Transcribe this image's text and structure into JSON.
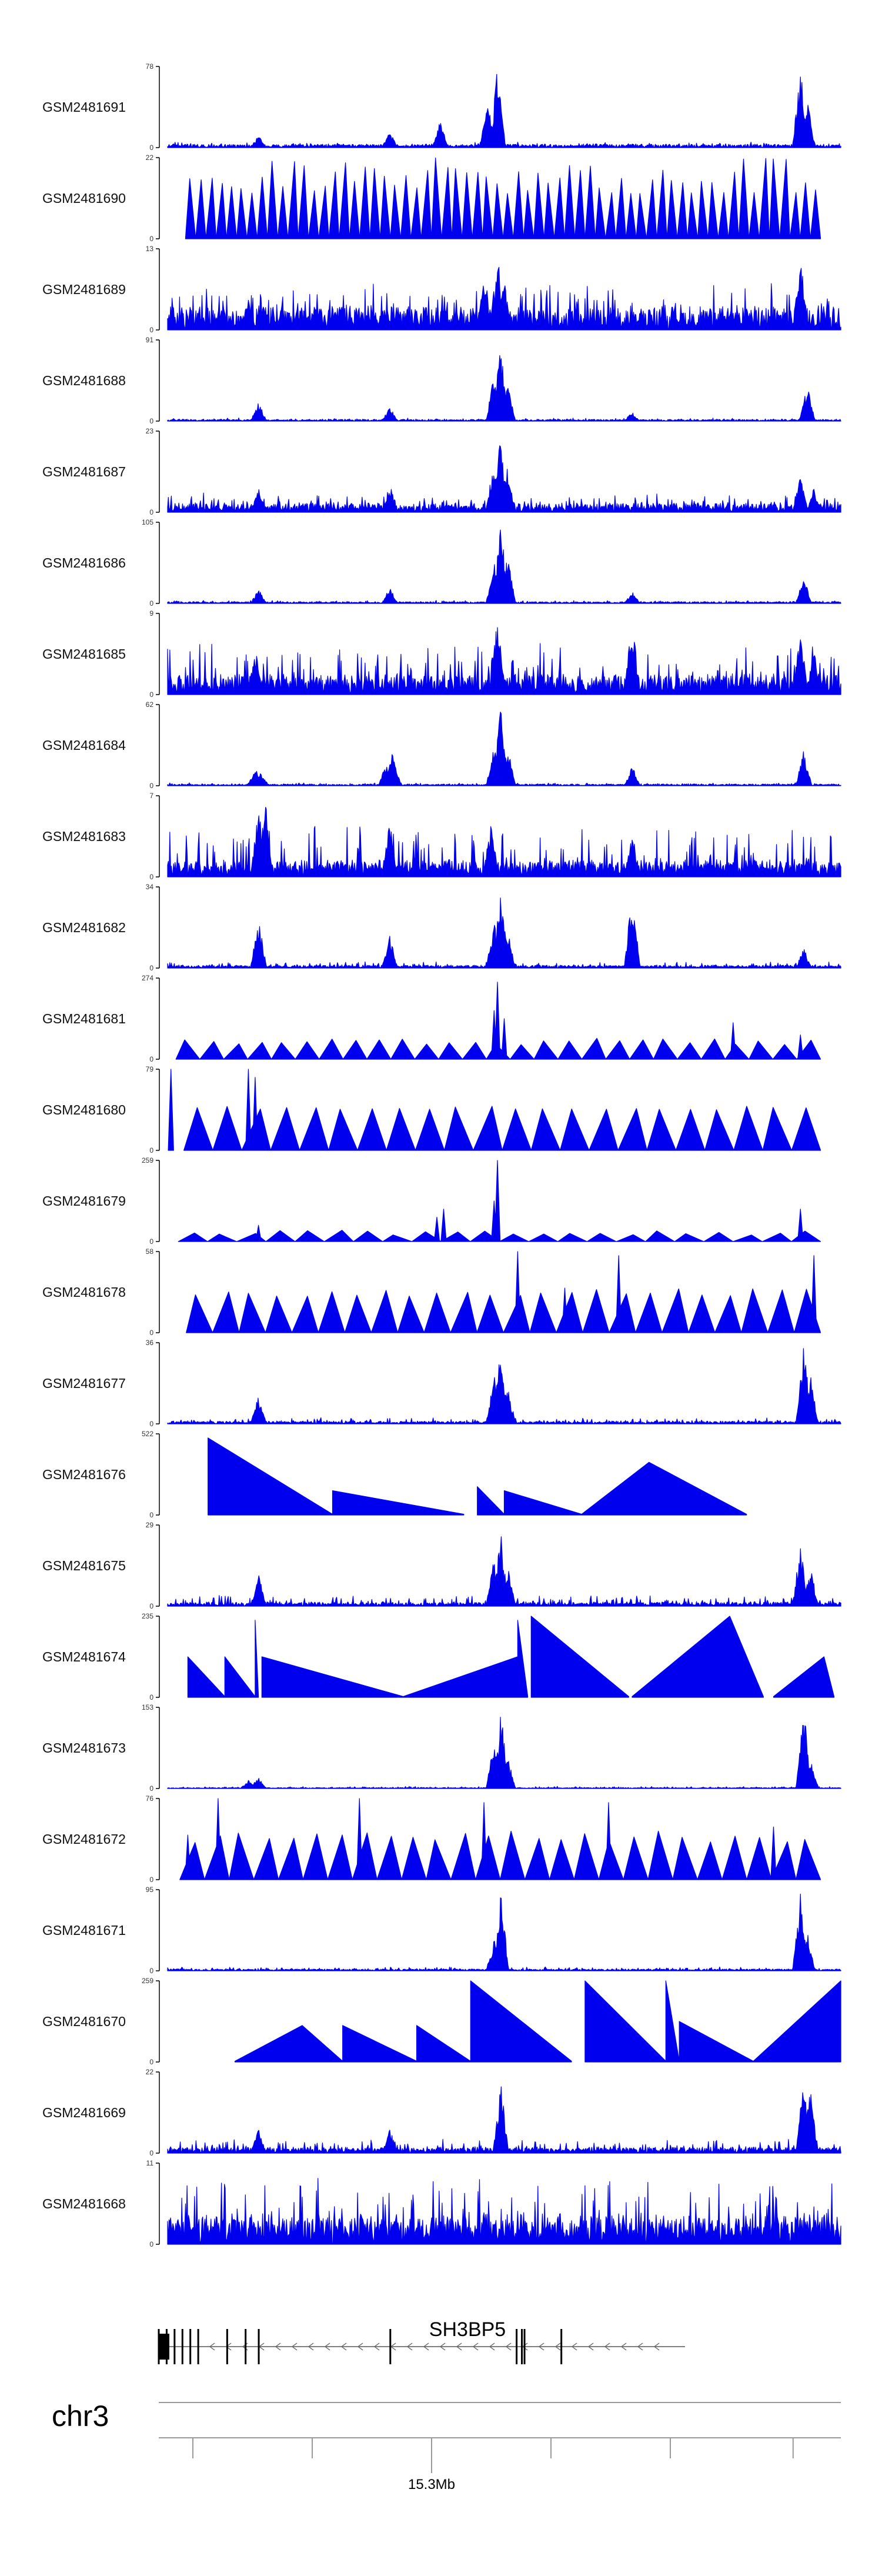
{
  "chart_data": {
    "type": "area",
    "title": "",
    "colors": {
      "signal": "#0000ee",
      "axis": "#000000",
      "gene": "#000000",
      "chrom_line": "#999999"
    },
    "tracks": [
      {
        "name": "GSM2481691",
        "ymax": 78,
        "ymin": 0,
        "style": "dense",
        "base": 0.04,
        "noise": 0.03,
        "peaks": [
          [
            0.135,
            0.15
          ],
          [
            0.33,
            0.2
          ],
          [
            0.405,
            0.35
          ],
          [
            0.49,
            1.0
          ],
          [
            0.475,
            0.6
          ],
          [
            0.94,
            1.0
          ],
          [
            0.95,
            0.6
          ]
        ]
      },
      {
        "name": "GSM2481690",
        "ymax": 22,
        "ymin": 0,
        "style": "sparse",
        "n": 62,
        "minH": 0.55,
        "maxH": 1.0
      },
      {
        "name": "GSM2481689",
        "ymax": 13,
        "ymin": 0,
        "style": "dense",
        "base": 0.25,
        "noise": 0.35,
        "peaks": [
          [
            0.47,
            0.6
          ],
          [
            0.49,
            0.95
          ],
          [
            0.5,
            0.6
          ],
          [
            0.94,
            0.95
          ],
          [
            0.12,
            0.4
          ],
          [
            0.22,
            0.4
          ]
        ]
      },
      {
        "name": "GSM2481688",
        "ymax": 91,
        "ymin": 0,
        "style": "dense",
        "base": 0.02,
        "noise": 0.02,
        "peaks": [
          [
            0.135,
            0.25
          ],
          [
            0.33,
            0.18
          ],
          [
            0.485,
            0.6
          ],
          [
            0.495,
            1.0
          ],
          [
            0.505,
            0.5
          ],
          [
            0.69,
            0.12
          ],
          [
            0.95,
            0.45
          ]
        ]
      },
      {
        "name": "GSM2481687",
        "ymax": 23,
        "ymin": 0,
        "style": "dense",
        "base": 0.1,
        "noise": 0.14,
        "peaks": [
          [
            0.135,
            0.3
          ],
          [
            0.33,
            0.35
          ],
          [
            0.485,
            0.7
          ],
          [
            0.495,
            1.0
          ],
          [
            0.505,
            0.6
          ],
          [
            0.94,
            0.45
          ],
          [
            0.96,
            0.3
          ]
        ]
      },
      {
        "name": "GSM2481686",
        "ymax": 105,
        "ymin": 0,
        "style": "dense",
        "base": 0.02,
        "noise": 0.02,
        "peaks": [
          [
            0.135,
            0.18
          ],
          [
            0.33,
            0.2
          ],
          [
            0.485,
            0.55
          ],
          [
            0.495,
            1.0
          ],
          [
            0.505,
            0.6
          ],
          [
            0.69,
            0.15
          ],
          [
            0.945,
            0.35
          ]
        ]
      },
      {
        "name": "GSM2481685",
        "ymax": 9,
        "ymin": 0,
        "style": "dense",
        "base": 0.2,
        "noise": 0.45,
        "peaks": [
          [
            0.49,
            1.0
          ],
          [
            0.69,
            1.0
          ],
          [
            0.94,
            0.8
          ],
          [
            0.96,
            0.6
          ],
          [
            0.13,
            0.6
          ]
        ]
      },
      {
        "name": "GSM2481684",
        "ymax": 62,
        "ymin": 0,
        "style": "dense",
        "base": 0.02,
        "noise": 0.02,
        "peaks": [
          [
            0.13,
            0.22
          ],
          [
            0.138,
            0.2
          ],
          [
            0.325,
            0.3
          ],
          [
            0.335,
            0.45
          ],
          [
            0.485,
            0.5
          ],
          [
            0.495,
            1.0
          ],
          [
            0.505,
            0.5
          ],
          [
            0.69,
            0.25
          ],
          [
            0.945,
            0.45
          ]
        ]
      },
      {
        "name": "GSM2481683",
        "ymax": 7,
        "ymin": 0,
        "style": "dense",
        "base": 0.15,
        "noise": 0.5,
        "peaks": [
          [
            0.135,
            0.9
          ],
          [
            0.145,
            1.0
          ],
          [
            0.33,
            0.8
          ],
          [
            0.48,
            0.7
          ],
          [
            0.69,
            0.6
          ]
        ]
      },
      {
        "name": "GSM2481682",
        "ymax": 34,
        "ymin": 0,
        "style": "dense",
        "base": 0.03,
        "noise": 0.05,
        "peaks": [
          [
            0.135,
            0.65
          ],
          [
            0.33,
            0.4
          ],
          [
            0.485,
            0.6
          ],
          [
            0.495,
            1.0
          ],
          [
            0.505,
            0.5
          ],
          [
            0.69,
            0.95
          ],
          [
            0.945,
            0.25
          ]
        ]
      },
      {
        "name": "GSM2481681",
        "ymax": 274,
        "ymin": 0,
        "style": "sparse",
        "n": 27,
        "minH": 0.18,
        "maxH": 0.26,
        "spikes": [
          [
            0.49,
            0.95
          ],
          [
            0.485,
            0.6
          ],
          [
            0.5,
            0.5
          ],
          [
            0.84,
            0.45
          ],
          [
            0.94,
            0.3
          ]
        ]
      },
      {
        "name": "GSM2481680",
        "ymax": 79,
        "ymin": 0,
        "style": "sparse",
        "n": 22,
        "minH": 0.5,
        "maxH": 0.55,
        "spikes": [
          [
            0.005,
            1.0
          ],
          [
            0.12,
            1.0
          ],
          [
            0.13,
            0.9
          ]
        ]
      },
      {
        "name": "GSM2481679",
        "ymax": 259,
        "ymin": 0,
        "style": "sparse",
        "n": 22,
        "minH": 0.08,
        "maxH": 0.15,
        "spikes": [
          [
            0.49,
            1.0
          ],
          [
            0.485,
            0.5
          ],
          [
            0.41,
            0.4
          ],
          [
            0.4,
            0.3
          ],
          [
            0.135,
            0.2
          ],
          [
            0.94,
            0.4
          ]
        ]
      },
      {
        "name": "GSM2481678",
        "ymax": 58,
        "ymin": 0,
        "style": "sparse",
        "n": 24,
        "minH": 0.45,
        "maxH": 0.55,
        "spikes": [
          [
            0.52,
            1.0
          ],
          [
            0.67,
            0.95
          ],
          [
            0.96,
            0.95
          ],
          [
            0.59,
            0.55
          ]
        ]
      },
      {
        "name": "GSM2481677",
        "ymax": 36,
        "ymin": 0,
        "style": "dense",
        "base": 0.03,
        "noise": 0.05,
        "peaks": [
          [
            0.135,
            0.35
          ],
          [
            0.485,
            0.6
          ],
          [
            0.495,
            1.0
          ],
          [
            0.505,
            0.5
          ],
          [
            0.945,
            1.0
          ],
          [
            0.955,
            0.6
          ]
        ]
      },
      {
        "name": "GSM2481676",
        "ymax": 522,
        "ymin": 0,
        "style": "tri",
        "tris": [
          [
            0.06,
            0.245,
            0.95,
            0.01
          ],
          [
            0.245,
            0.44,
            0.3,
            0.01
          ],
          [
            0.46,
            0.5,
            0.35,
            0.01
          ],
          [
            0.5,
            0.615,
            0.3,
            0.01
          ],
          [
            0.615,
            0.715,
            0.3,
            0.65
          ],
          [
            0.715,
            0.86,
            0.65,
            0.01
          ]
        ]
      },
      {
        "name": "GSM2481675",
        "ymax": 29,
        "ymin": 0,
        "style": "dense",
        "base": 0.04,
        "noise": 0.1,
        "peaks": [
          [
            0.135,
            0.4
          ],
          [
            0.485,
            0.6
          ],
          [
            0.495,
            0.95
          ],
          [
            0.505,
            0.5
          ],
          [
            0.94,
            0.8
          ],
          [
            0.955,
            0.5
          ]
        ]
      },
      {
        "name": "GSM2481674",
        "ymax": 235,
        "ymin": 0,
        "style": "tri",
        "tris": [
          [
            0.03,
            0.085,
            0.5,
            0.01
          ],
          [
            0.085,
            0.13,
            0.5,
            0.01
          ],
          [
            0.13,
            0.135,
            0.95,
            0.01
          ],
          [
            0.14,
            0.35,
            0.5,
            0.01
          ],
          [
            0.35,
            0.52,
            0.01,
            0.5
          ],
          [
            0.52,
            0.535,
            0.95,
            0.01
          ],
          [
            0.54,
            0.685,
            1.0,
            0.01
          ],
          [
            0.69,
            0.835,
            0.01,
            1.0
          ],
          [
            0.835,
            0.885,
            1.0,
            0.01
          ],
          [
            0.9,
            0.975,
            0.01,
            0.5
          ],
          [
            0.975,
            0.99,
            0.5,
            0.01
          ]
        ]
      },
      {
        "name": "GSM2481673",
        "ymax": 153,
        "ymin": 0,
        "style": "dense",
        "base": 0.01,
        "noise": 0.02,
        "peaks": [
          [
            0.12,
            0.1
          ],
          [
            0.135,
            0.15
          ],
          [
            0.485,
            0.6
          ],
          [
            0.495,
            1.0
          ],
          [
            0.505,
            0.4
          ],
          [
            0.945,
            1.0
          ],
          [
            0.955,
            0.4
          ]
        ]
      },
      {
        "name": "GSM2481672",
        "ymax": 76,
        "ymin": 0,
        "style": "sparse",
        "n": 26,
        "minH": 0.45,
        "maxH": 0.6,
        "spikes": [
          [
            0.03,
            0.55
          ],
          [
            0.075,
            1.0
          ],
          [
            0.285,
            1.0
          ],
          [
            0.47,
            0.95
          ],
          [
            0.655,
            0.95
          ],
          [
            0.9,
            0.65
          ]
        ]
      },
      {
        "name": "GSM2481671",
        "ymax": 95,
        "ymin": 0,
        "style": "dense",
        "base": 0.02,
        "noise": 0.03,
        "peaks": [
          [
            0.485,
            0.4
          ],
          [
            0.495,
            1.0
          ],
          [
            0.94,
            1.0
          ],
          [
            0.95,
            0.5
          ]
        ]
      },
      {
        "name": "GSM2481670",
        "ymax": 259,
        "ymin": 0,
        "style": "tri",
        "tris": [
          [
            0.1,
            0.2,
            0.01,
            0.45
          ],
          [
            0.2,
            0.26,
            0.45,
            0.01
          ],
          [
            0.26,
            0.37,
            0.45,
            0.01
          ],
          [
            0.37,
            0.45,
            0.45,
            0.01
          ],
          [
            0.45,
            0.6,
            1.0,
            0.01
          ],
          [
            0.62,
            0.74,
            1.0,
            0.01
          ],
          [
            0.74,
            0.76,
            1.0,
            0.01
          ],
          [
            0.76,
            0.87,
            0.5,
            0.01
          ],
          [
            0.87,
            1.0,
            0.01,
            1.0
          ]
        ]
      },
      {
        "name": "GSM2481669",
        "ymax": 22,
        "ymin": 0,
        "style": "dense",
        "base": 0.06,
        "noise": 0.12,
        "peaks": [
          [
            0.135,
            0.3
          ],
          [
            0.33,
            0.3
          ],
          [
            0.495,
            0.9
          ],
          [
            0.945,
            1.0
          ],
          [
            0.955,
            0.8
          ]
        ]
      },
      {
        "name": "GSM2481668",
        "ymax": 11,
        "ymin": 0,
        "style": "dense",
        "base": 0.3,
        "noise": 0.55,
        "peaks": []
      }
    ],
    "gene_track": {
      "name": "SH3BP5",
      "strand": "minus",
      "exons": [
        0.0,
        0.015,
        0.03,
        0.045,
        0.06,
        0.075,
        0.13,
        0.165,
        0.19,
        0.44,
        0.68,
        0.69,
        0.695,
        0.765
      ]
    },
    "ideogram": {
      "chromosome": "chr3",
      "position_label": "15.3Mb",
      "ticks": [
        0.05,
        0.225,
        0.4,
        0.575,
        0.75,
        0.93
      ],
      "labeled_tick": 0.4
    }
  }
}
